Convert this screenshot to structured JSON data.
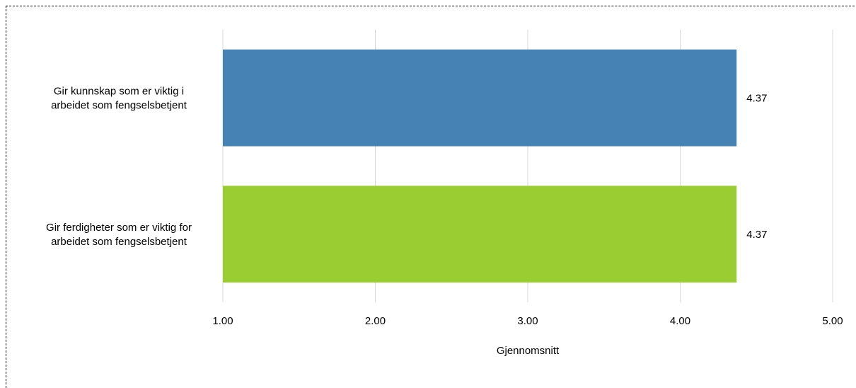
{
  "chart_data": {
    "type": "bar",
    "orientation": "horizontal",
    "categories": [
      [
        "Gir kunnskap som er viktig i",
        "arbeidet som fengselsbetjent"
      ],
      [
        "Gir ferdigheter som er viktig for",
        "arbeidet som fengselsbetjent"
      ]
    ],
    "values": [
      4.37,
      4.37
    ],
    "value_labels": [
      "4.37",
      "4.37"
    ],
    "bar_colors": [
      "#4682B4",
      "#9ACD32"
    ],
    "xlim": [
      1,
      5
    ],
    "x_ticks": [
      1,
      2,
      3,
      4,
      5
    ],
    "x_tick_labels": [
      "1.00",
      "2.00",
      "3.00",
      "4.00",
      "5.00"
    ],
    "xlabel": "Gjennomsnitt",
    "grid": "vertical"
  }
}
